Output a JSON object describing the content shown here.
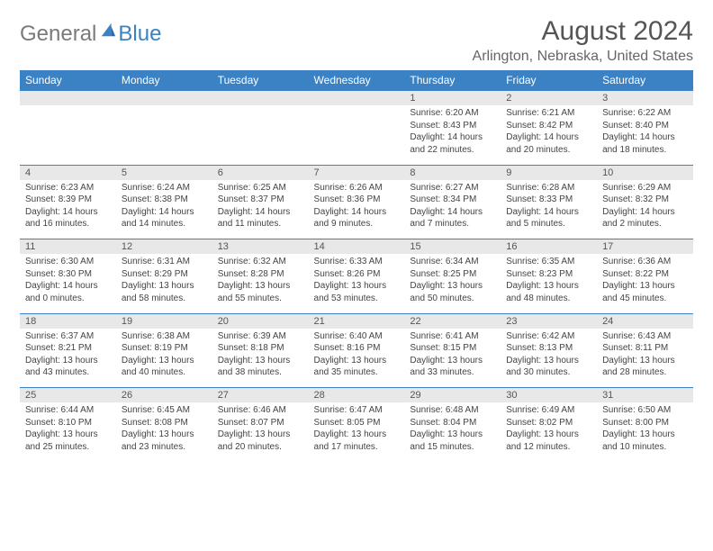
{
  "logo": {
    "text1": "General",
    "text2": "Blue"
  },
  "title": "August 2024",
  "location": "Arlington, Nebraska, United States",
  "colors": {
    "header_bg": "#3a82c4",
    "header_text": "#ffffff",
    "daynum_bg": "#e8e8e8",
    "border": "#3a82c4",
    "body_text": "#444444",
    "title_text": "#555555"
  },
  "weekdays": [
    "Sunday",
    "Monday",
    "Tuesday",
    "Wednesday",
    "Thursday",
    "Friday",
    "Saturday"
  ],
  "weeks": [
    [
      null,
      null,
      null,
      null,
      {
        "n": "1",
        "sr": "6:20 AM",
        "ss": "8:43 PM",
        "dl": "14 hours and 22 minutes."
      },
      {
        "n": "2",
        "sr": "6:21 AM",
        "ss": "8:42 PM",
        "dl": "14 hours and 20 minutes."
      },
      {
        "n": "3",
        "sr": "6:22 AM",
        "ss": "8:40 PM",
        "dl": "14 hours and 18 minutes."
      }
    ],
    [
      {
        "n": "4",
        "sr": "6:23 AM",
        "ss": "8:39 PM",
        "dl": "14 hours and 16 minutes."
      },
      {
        "n": "5",
        "sr": "6:24 AM",
        "ss": "8:38 PM",
        "dl": "14 hours and 14 minutes."
      },
      {
        "n": "6",
        "sr": "6:25 AM",
        "ss": "8:37 PM",
        "dl": "14 hours and 11 minutes."
      },
      {
        "n": "7",
        "sr": "6:26 AM",
        "ss": "8:36 PM",
        "dl": "14 hours and 9 minutes."
      },
      {
        "n": "8",
        "sr": "6:27 AM",
        "ss": "8:34 PM",
        "dl": "14 hours and 7 minutes."
      },
      {
        "n": "9",
        "sr": "6:28 AM",
        "ss": "8:33 PM",
        "dl": "14 hours and 5 minutes."
      },
      {
        "n": "10",
        "sr": "6:29 AM",
        "ss": "8:32 PM",
        "dl": "14 hours and 2 minutes."
      }
    ],
    [
      {
        "n": "11",
        "sr": "6:30 AM",
        "ss": "8:30 PM",
        "dl": "14 hours and 0 minutes."
      },
      {
        "n": "12",
        "sr": "6:31 AM",
        "ss": "8:29 PM",
        "dl": "13 hours and 58 minutes."
      },
      {
        "n": "13",
        "sr": "6:32 AM",
        "ss": "8:28 PM",
        "dl": "13 hours and 55 minutes."
      },
      {
        "n": "14",
        "sr": "6:33 AM",
        "ss": "8:26 PM",
        "dl": "13 hours and 53 minutes."
      },
      {
        "n": "15",
        "sr": "6:34 AM",
        "ss": "8:25 PM",
        "dl": "13 hours and 50 minutes."
      },
      {
        "n": "16",
        "sr": "6:35 AM",
        "ss": "8:23 PM",
        "dl": "13 hours and 48 minutes."
      },
      {
        "n": "17",
        "sr": "6:36 AM",
        "ss": "8:22 PM",
        "dl": "13 hours and 45 minutes."
      }
    ],
    [
      {
        "n": "18",
        "sr": "6:37 AM",
        "ss": "8:21 PM",
        "dl": "13 hours and 43 minutes."
      },
      {
        "n": "19",
        "sr": "6:38 AM",
        "ss": "8:19 PM",
        "dl": "13 hours and 40 minutes."
      },
      {
        "n": "20",
        "sr": "6:39 AM",
        "ss": "8:18 PM",
        "dl": "13 hours and 38 minutes."
      },
      {
        "n": "21",
        "sr": "6:40 AM",
        "ss": "8:16 PM",
        "dl": "13 hours and 35 minutes."
      },
      {
        "n": "22",
        "sr": "6:41 AM",
        "ss": "8:15 PM",
        "dl": "13 hours and 33 minutes."
      },
      {
        "n": "23",
        "sr": "6:42 AM",
        "ss": "8:13 PM",
        "dl": "13 hours and 30 minutes."
      },
      {
        "n": "24",
        "sr": "6:43 AM",
        "ss": "8:11 PM",
        "dl": "13 hours and 28 minutes."
      }
    ],
    [
      {
        "n": "25",
        "sr": "6:44 AM",
        "ss": "8:10 PM",
        "dl": "13 hours and 25 minutes."
      },
      {
        "n": "26",
        "sr": "6:45 AM",
        "ss": "8:08 PM",
        "dl": "13 hours and 23 minutes."
      },
      {
        "n": "27",
        "sr": "6:46 AM",
        "ss": "8:07 PM",
        "dl": "13 hours and 20 minutes."
      },
      {
        "n": "28",
        "sr": "6:47 AM",
        "ss": "8:05 PM",
        "dl": "13 hours and 17 minutes."
      },
      {
        "n": "29",
        "sr": "6:48 AM",
        "ss": "8:04 PM",
        "dl": "13 hours and 15 minutes."
      },
      {
        "n": "30",
        "sr": "6:49 AM",
        "ss": "8:02 PM",
        "dl": "13 hours and 12 minutes."
      },
      {
        "n": "31",
        "sr": "6:50 AM",
        "ss": "8:00 PM",
        "dl": "13 hours and 10 minutes."
      }
    ]
  ],
  "labels": {
    "sunrise": "Sunrise:",
    "sunset": "Sunset:",
    "daylight": "Daylight:"
  }
}
